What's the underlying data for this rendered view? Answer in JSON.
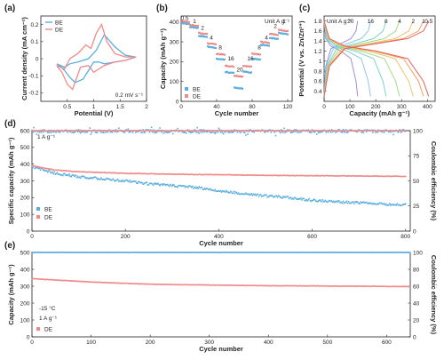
{
  "colors": {
    "BE": "#5aaee0",
    "DE": "#f08a8a"
  },
  "chart_data": [
    {
      "id": "a",
      "panel_label": "(a)",
      "type": "line",
      "xlabel": "Potential (V)",
      "ylabel": "Current density (mA cm⁻²)",
      "xlim": [
        0.0,
        2.0
      ],
      "ylim": [
        -0.25,
        0.25
      ],
      "xticks": [
        0.5,
        1.0,
        1.5,
        2.0
      ],
      "yticks": [
        -0.2,
        -0.1,
        0.0,
        0.1,
        0.2
      ],
      "annotation": "0.2 mV s⁻¹",
      "legend": {
        "position": "top-left",
        "entries": [
          "BE",
          "DE"
        ]
      },
      "series": [
        {
          "name": "BE",
          "x": [
            0.3,
            0.45,
            0.55,
            0.7,
            0.9,
            1.05,
            1.2,
            1.4,
            1.6,
            1.8,
            1.6,
            1.4,
            1.2,
            1.1,
            1.0,
            0.9,
            0.8,
            0.65,
            0.55,
            0.45,
            0.35,
            0.3
          ],
          "y": [
            -0.03,
            -0.05,
            -0.03,
            -0.02,
            0.0,
            0.05,
            0.14,
            0.07,
            0.02,
            0.01,
            -0.01,
            -0.02,
            -0.03,
            -0.02,
            -0.02,
            -0.07,
            -0.12,
            -0.14,
            -0.11,
            -0.07,
            -0.04,
            -0.03
          ]
        },
        {
          "name": "DE",
          "x": [
            0.3,
            0.45,
            0.55,
            0.7,
            0.85,
            0.95,
            1.05,
            1.15,
            1.25,
            1.4,
            1.6,
            1.8,
            1.6,
            1.4,
            1.2,
            1.1,
            1.0,
            0.9,
            0.75,
            0.6,
            0.5,
            0.4,
            0.3
          ],
          "y": [
            -0.04,
            -0.06,
            0.0,
            0.03,
            0.08,
            0.06,
            0.15,
            0.2,
            0.1,
            0.03,
            0.01,
            0.01,
            -0.01,
            -0.02,
            -0.04,
            -0.06,
            -0.08,
            -0.04,
            -0.05,
            -0.18,
            -0.15,
            -0.08,
            -0.04
          ]
        }
      ]
    },
    {
      "id": "b",
      "panel_label": "(b)",
      "type": "scatter",
      "xlabel": "Cycle number",
      "ylabel": "Capacity (mAh g⁻¹)",
      "xlim": [
        0,
        125
      ],
      "ylim": [
        0,
        430
      ],
      "xticks": [
        0,
        40,
        80,
        120
      ],
      "yticks": [
        0,
        100,
        200,
        300,
        400
      ],
      "unit_note": "Unit A g⁻¹",
      "rate_labels": [
        {
          "text": "0.5",
          "x": 4,
          "y": 410
        },
        {
          "text": "1",
          "x": 15,
          "y": 395
        },
        {
          "text": "2",
          "x": 24,
          "y": 360
        },
        {
          "text": "4",
          "x": 34,
          "y": 312
        },
        {
          "text": "8",
          "x": 44,
          "y": 262
        },
        {
          "text": "16",
          "x": 56,
          "y": 205
        },
        {
          "text": "20",
          "x": 66,
          "y": 150
        },
        {
          "text": "16",
          "x": 78,
          "y": 205
        },
        {
          "text": "8",
          "x": 88,
          "y": 262
        },
        {
          "text": "4",
          "x": 96,
          "y": 312
        },
        {
          "text": "2",
          "x": 106,
          "y": 370
        },
        {
          "text": "1",
          "x": 116,
          "y": 395
        }
      ],
      "legend": {
        "position": "bottom-left",
        "entries": [
          "BE",
          "DE"
        ]
      },
      "segments": [
        {
          "start": 0,
          "end": 9,
          "BE": 395,
          "DE": 405
        },
        {
          "start": 10,
          "end": 19,
          "BE": 375,
          "DE": 385
        },
        {
          "start": 20,
          "end": 29,
          "BE": 330,
          "DE": 345
        },
        {
          "start": 30,
          "end": 39,
          "BE": 275,
          "DE": 292
        },
        {
          "start": 40,
          "end": 49,
          "BE": 215,
          "DE": 240
        },
        {
          "start": 50,
          "end": 59,
          "BE": 148,
          "DE": 180
        },
        {
          "start": 60,
          "end": 69,
          "BE": 70,
          "DE": 130
        },
        {
          "start": 70,
          "end": 79,
          "BE": 150,
          "DE": 180
        },
        {
          "start": 80,
          "end": 89,
          "BE": 215,
          "DE": 240
        },
        {
          "start": 90,
          "end": 99,
          "BE": 285,
          "DE": 300
        },
        {
          "start": 100,
          "end": 109,
          "BE": 320,
          "DE": 340
        },
        {
          "start": 110,
          "end": 120,
          "BE": 345,
          "DE": 360
        }
      ]
    },
    {
      "id": "c",
      "panel_label": "(c)",
      "type": "line",
      "xlabel": "Capacity (mAh g⁻¹)",
      "ylabel": "Potential (V vs. Zn/Zn²⁺)",
      "xlim": [
        0,
        430
      ],
      "ylim": [
        0.2,
        1.9
      ],
      "xticks": [
        0,
        100,
        200,
        300,
        400
      ],
      "yticks": [
        0.4,
        0.6,
        0.8,
        1.0,
        1.2,
        1.4,
        1.6,
        1.8
      ],
      "unit_note": "Unit A g⁻¹",
      "rates": [
        "20",
        "16",
        "8",
        "4",
        "2",
        "1",
        "0.5"
      ],
      "rate_colors": [
        "#9b8fd6",
        "#8fc7e8",
        "#7ed3c6",
        "#a5d98a",
        "#e4c46a",
        "#f2a05a",
        "#e86060"
      ],
      "capacities": [
        130,
        180,
        240,
        292,
        345,
        385,
        405
      ]
    },
    {
      "id": "d",
      "panel_label": "(d)",
      "type": "scatter",
      "xlabel": "Cycle number",
      "ylabel": "Specific capacity (mAh g⁻¹)",
      "y2label": "Coulombic efficiency (%)",
      "xlim": [
        0,
        810
      ],
      "ylim": [
        0,
        600
      ],
      "y2lim": [
        0,
        100
      ],
      "xticks": [
        0,
        200,
        400,
        600,
        800
      ],
      "yticks": [
        0,
        100,
        200,
        300,
        400,
        500,
        600
      ],
      "y2ticks": [
        0,
        25,
        50,
        75,
        100
      ],
      "annotation": "1 A g⁻¹",
      "legend": {
        "position": "bottom-left",
        "entries": [
          "BE",
          "DE"
        ]
      },
      "series": [
        {
          "name": "BE",
          "role": "capacity",
          "x": [
            0,
            50,
            100,
            150,
            200,
            250,
            300,
            350,
            400,
            450,
            500,
            550,
            600,
            650,
            700,
            750,
            800
          ],
          "y": [
            385,
            345,
            325,
            312,
            300,
            282,
            272,
            262,
            240,
            225,
            210,
            200,
            185,
            175,
            170,
            160,
            158
          ]
        },
        {
          "name": "DE",
          "role": "capacity",
          "x": [
            0,
            50,
            100,
            150,
            200,
            250,
            300,
            350,
            400,
            450,
            500,
            550,
            600,
            650,
            700,
            750,
            800
          ],
          "y": [
            390,
            365,
            355,
            350,
            345,
            343,
            340,
            338,
            337,
            335,
            333,
            332,
            331,
            330,
            329,
            328,
            327
          ]
        },
        {
          "name": "BE",
          "role": "efficiency",
          "mean": 99.5,
          "spread": 3
        },
        {
          "name": "DE",
          "role": "efficiency",
          "mean": 100.0,
          "spread": 0.5
        }
      ]
    },
    {
      "id": "e",
      "panel_label": "(e)",
      "type": "scatter",
      "xlabel": "Cycle number",
      "ylabel": "Capacity (mAh g⁻¹)",
      "y2label": "Coulombic efficiency (%)",
      "xlim": [
        0,
        640
      ],
      "ylim": [
        0,
        500
      ],
      "y2lim": [
        0,
        100
      ],
      "xticks": [
        0,
        100,
        200,
        300,
        400,
        500,
        600
      ],
      "yticks": [
        0,
        100,
        200,
        300,
        400,
        500
      ],
      "y2ticks": [
        0,
        20,
        40,
        60,
        80,
        100
      ],
      "annotations": [
        "-15 °C",
        "1 A g⁻¹"
      ],
      "legend": {
        "position": "bottom-left",
        "entries": [
          "DE"
        ]
      },
      "series": [
        {
          "name": "DE",
          "role": "capacity",
          "x": [
            0,
            50,
            100,
            150,
            200,
            250,
            300,
            350,
            400,
            450,
            500,
            550,
            600,
            640
          ],
          "y": [
            345,
            335,
            325,
            318,
            312,
            309,
            307,
            305,
            303,
            302,
            301,
            300,
            299,
            298
          ]
        },
        {
          "name": "DE",
          "role": "efficiency",
          "mean": 100.0,
          "spread": 0.3
        }
      ]
    }
  ]
}
